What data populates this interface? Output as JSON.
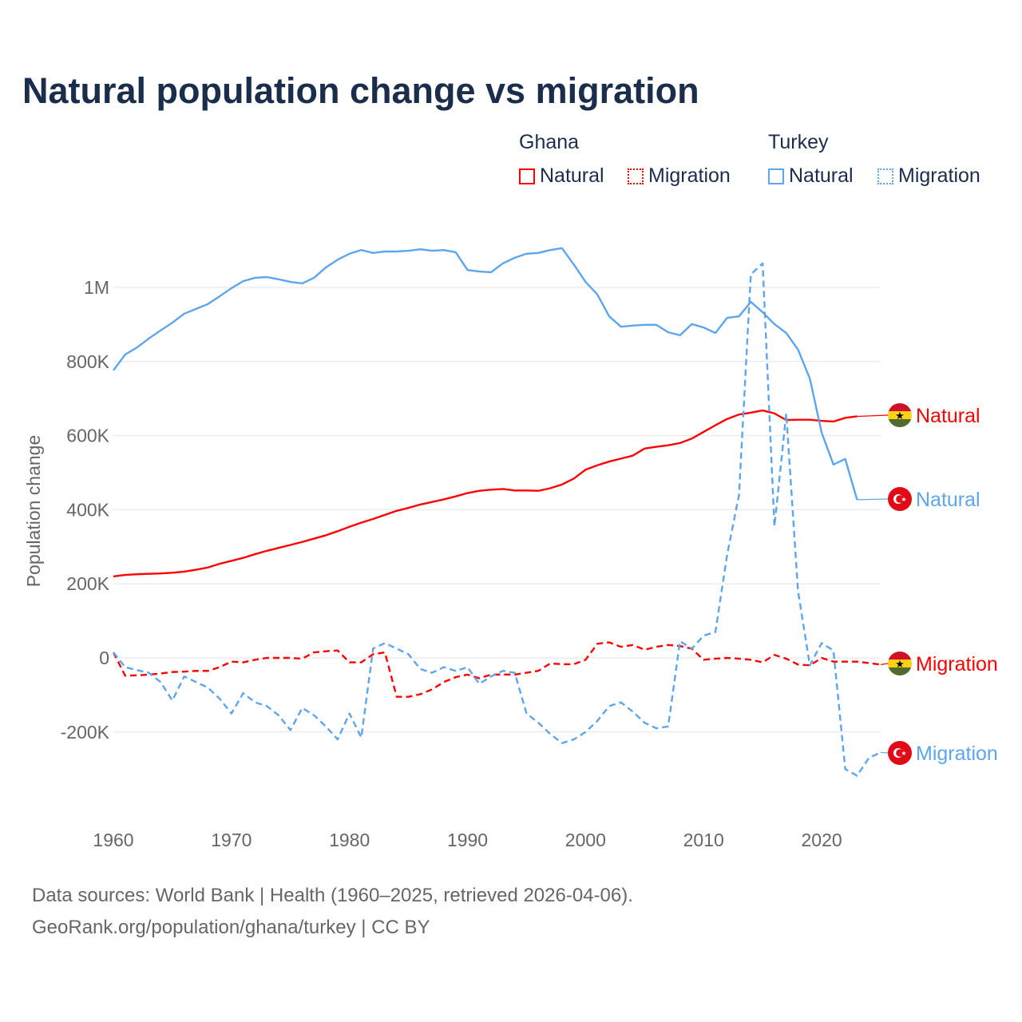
{
  "chart_data": {
    "type": "line",
    "title": "Natural population change vs migration",
    "ylabel": "Population change",
    "xlabel": "",
    "xlim": [
      1960,
      2025
    ],
    "ylim": [
      -380000,
      1150000
    ],
    "xticks": [
      "1960",
      "1970",
      "1980",
      "1990",
      "2000",
      "2010",
      "2020"
    ],
    "yticks": [
      {
        "v": -200000,
        "label": "-200K"
      },
      {
        "v": 0,
        "label": "0"
      },
      {
        "v": 200000,
        "label": "200K"
      },
      {
        "v": 400000,
        "label": "400K"
      },
      {
        "v": 600000,
        "label": "600K"
      },
      {
        "v": 800000,
        "label": "800K"
      },
      {
        "v": 1000000,
        "label": "1M"
      }
    ],
    "legend": {
      "groups": [
        {
          "country": "Ghana",
          "items": [
            "Natural",
            "Migration"
          ]
        },
        {
          "country": "Turkey",
          "items": [
            "Natural",
            "Migration"
          ]
        }
      ],
      "placement": "top-right"
    },
    "series": [
      {
        "name": "Ghana Natural",
        "country": "Ghana",
        "kind": "Natural",
        "color": "#ff0000",
        "dash": false,
        "start": 1960,
        "values": [
          220,
          224,
          226,
          227,
          228,
          230,
          233,
          238,
          244,
          254,
          262,
          270,
          280,
          289,
          297,
          305,
          313,
          322,
          331,
          342,
          354,
          365,
          375,
          386,
          397,
          405,
          414,
          421,
          428,
          436,
          445,
          451,
          454,
          456,
          452,
          452,
          451,
          458,
          468,
          484,
          508,
          520,
          530,
          538,
          546,
          565,
          570,
          574,
          580,
          592,
          610,
          628,
          645,
          657,
          662,
          668,
          660,
          642,
          643,
          643,
          640,
          638,
          648,
          652
        ]
      },
      {
        "name": "Ghana Migration",
        "country": "Ghana",
        "kind": "Migration",
        "color": "#ff0000",
        "dash": true,
        "start": 1960,
        "values": [
          15,
          -48,
          -47,
          -45,
          -42,
          -38,
          -37,
          -35,
          -35,
          -25,
          -10,
          -12,
          -5,
          0,
          0,
          0,
          -2,
          15,
          18,
          20,
          -12,
          -12,
          10,
          15,
          -105,
          -105,
          -98,
          -85,
          -65,
          -52,
          -45,
          -55,
          -45,
          -45,
          -45,
          -40,
          -35,
          -15,
          -17,
          -17,
          -5,
          38,
          42,
          30,
          35,
          22,
          30,
          35,
          32,
          25,
          -5,
          -2,
          0,
          -2,
          -5,
          -12,
          8,
          -2,
          -18,
          -20,
          0,
          -10,
          -10,
          -10,
          -14,
          -18
        ]
      },
      {
        "name": "Turkey Natural",
        "country": "Turkey",
        "kind": "Natural",
        "color": "#5da5ec",
        "dash": false,
        "start": 1960,
        "values": [
          776,
          819,
          838,
          862,
          884,
          905,
          929,
          942,
          955,
          976,
          998,
          1017,
          1026,
          1028,
          1022,
          1015,
          1011,
          1026,
          1054,
          1075,
          1091,
          1101,
          1093,
          1097,
          1097,
          1099,
          1103,
          1099,
          1101,
          1095,
          1047,
          1043,
          1041,
          1065,
          1080,
          1091,
          1093,
          1101,
          1106,
          1062,
          1015,
          981,
          922,
          894,
          897,
          899,
          899,
          879,
          871,
          901,
          892,
          877,
          918,
          922,
          961,
          933,
          901,
          877,
          832,
          754,
          608,
          522,
          537,
          427
        ]
      },
      {
        "name": "Turkey Migration",
        "country": "Turkey",
        "kind": "Migration",
        "color": "#5da5ec",
        "dash": true,
        "start": 1960,
        "values": [
          15,
          -25,
          -33,
          -40,
          -65,
          -115,
          -50,
          -65,
          -80,
          -110,
          -150,
          -95,
          -120,
          -130,
          -155,
          -195,
          -135,
          -155,
          -185,
          -220,
          -150,
          -215,
          25,
          40,
          25,
          10,
          -30,
          -40,
          -25,
          -35,
          -25,
          -70,
          -50,
          -35,
          -40,
          -150,
          -175,
          -205,
          -230,
          -220,
          -200,
          -170,
          -130,
          -120,
          -145,
          -175,
          -190,
          -185,
          45,
          25,
          60,
          70,
          280,
          440,
          1035,
          1065,
          355,
          660,
          180,
          -20,
          40,
          20,
          -300,
          -318,
          -270,
          -255
        ]
      }
    ],
    "value_unit": "thousands",
    "end_labels": [
      "Natural",
      "Natural",
      "Migration",
      "Migration"
    ]
  },
  "footer": {
    "line1": "Data sources: World Bank | Health (1960–2025, retrieved 2026-04-06).",
    "line2": "GeoRank.org/population/ghana/turkey | CC BY"
  }
}
